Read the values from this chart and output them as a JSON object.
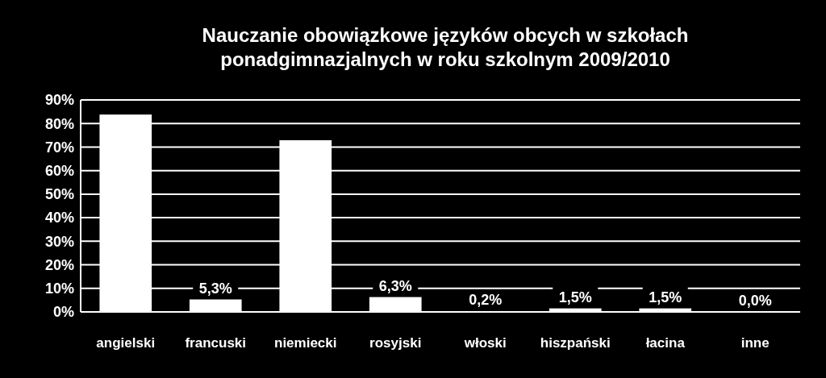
{
  "chart_data": {
    "type": "bar",
    "title": "Nauczanie obowiązkowe języków obcych w szkołach\nponadgimnazjalnych w roku szkolnym 2009/2010",
    "categories": [
      "angielski",
      "francuski",
      "niemiecki",
      "rosyjski",
      "włoski",
      "hiszpański",
      "łacina",
      "inne"
    ],
    "values": [
      83.8,
      5.3,
      72.9,
      6.3,
      0.2,
      1.5,
      1.5,
      0.0
    ],
    "value_labels": [
      null,
      "5,3%",
      null,
      "6,3%",
      "0,2%",
      "1,5%",
      "1,5%",
      "0,0%"
    ],
    "color": "#ffffff",
    "ylim": [
      0,
      90
    ],
    "yticks": [
      {
        "value": 0,
        "label": "0%"
      },
      {
        "value": 10,
        "label": "10%"
      },
      {
        "value": 20,
        "label": "20%"
      },
      {
        "value": 30,
        "label": "30%"
      },
      {
        "value": 40,
        "label": "40%"
      },
      {
        "value": 50,
        "label": "50%"
      },
      {
        "value": 60,
        "label": "60%"
      },
      {
        "value": 70,
        "label": "70%"
      },
      {
        "value": 80,
        "label": "80%"
      },
      {
        "value": 90,
        "label": "90%"
      }
    ],
    "grid": "y"
  }
}
